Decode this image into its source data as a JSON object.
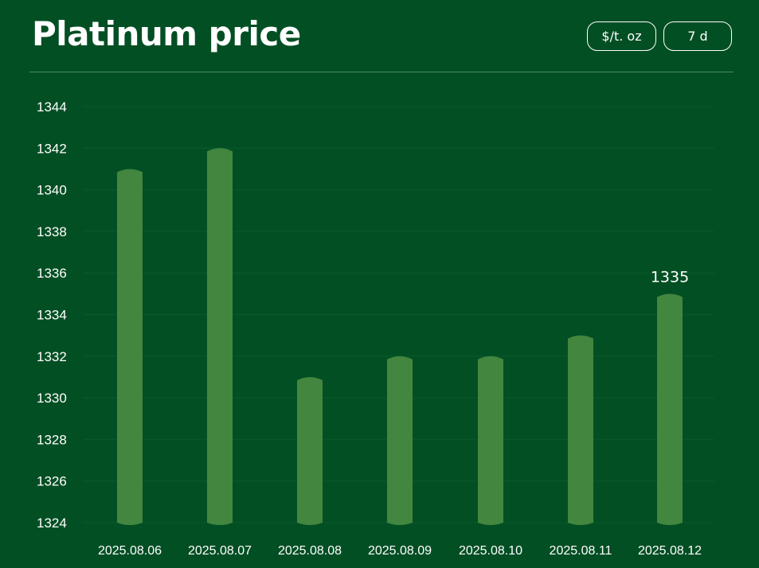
{
  "header": {
    "title": "Platinum price",
    "unit_label": "$/t. oz",
    "range_label": "7 d"
  },
  "colors": {
    "background": "#034f24",
    "bar": "#43863f",
    "grid": "#0a5a2c",
    "text": "#ffffff"
  },
  "chart_data": {
    "type": "bar",
    "title": "Platinum price",
    "xlabel": "",
    "ylabel": "",
    "categories": [
      "2025.08.06",
      "2025.08.07",
      "2025.08.08",
      "2025.08.09",
      "2025.08.10",
      "2025.08.11",
      "2025.08.12"
    ],
    "values": [
      1341,
      1342,
      1331,
      1332,
      1332,
      1333,
      1335
    ],
    "ylim": [
      1324,
      1344
    ],
    "yticks": [
      1324,
      1326,
      1328,
      1330,
      1332,
      1334,
      1336,
      1338,
      1340,
      1342,
      1344
    ],
    "grid": true,
    "data_labels": [
      {
        "category": "2025.08.12",
        "text": "1335"
      }
    ]
  }
}
